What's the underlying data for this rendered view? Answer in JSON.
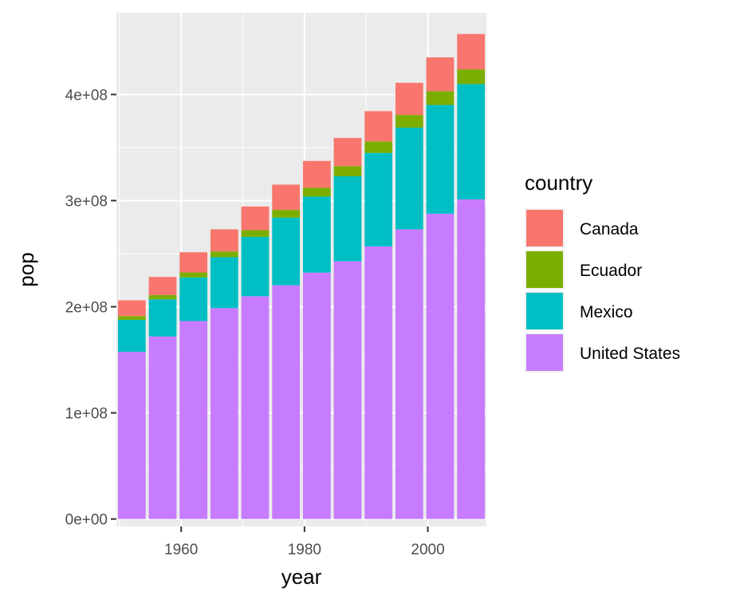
{
  "chart_data": {
    "type": "bar",
    "stacked": true,
    "xlabel": "year",
    "ylabel": "pop",
    "x": [
      1952,
      1957,
      1962,
      1967,
      1972,
      1977,
      1982,
      1987,
      1992,
      1997,
      2002,
      2007
    ],
    "xlim": [
      1949.5,
      2009.5
    ],
    "ylim": [
      -7000000,
      477000000
    ],
    "x_ticks": [
      {
        "value": 1960,
        "label": "1960"
      },
      {
        "value": 1980,
        "label": "1980"
      },
      {
        "value": 2000,
        "label": "2000"
      }
    ],
    "y_ticks": [
      {
        "value": 0,
        "label": "0e+00"
      },
      {
        "value": 100000000,
        "label": "1e+08"
      },
      {
        "value": 200000000,
        "label": "2e+08"
      },
      {
        "value": 300000000,
        "label": "3e+08"
      },
      {
        "value": 400000000,
        "label": "4e+08"
      }
    ],
    "legend": {
      "title": "country",
      "position": "right"
    },
    "grid": true,
    "series": [
      {
        "name": "United States",
        "color": "#C77CFF",
        "values": [
          157553000,
          171984000,
          186538000,
          198712000,
          209896000,
          220239000,
          232187835,
          242803533,
          256894189,
          272911760,
          287675526,
          301139947
        ]
      },
      {
        "name": "Mexico",
        "color": "#00BFC4",
        "values": [
          30144317,
          35015548,
          41121485,
          47995559,
          55984294,
          63759976,
          71640904,
          80122492,
          88111030,
          95895146,
          102479927,
          108700891
        ]
      },
      {
        "name": "Ecuador",
        "color": "#7CAE00",
        "values": [
          3548753,
          4058385,
          4681707,
          5432424,
          6298651,
          7278866,
          8365850,
          9545158,
          10748394,
          11911819,
          12921234,
          13755680
        ]
      },
      {
        "name": "Canada",
        "color": "#F8766D",
        "values": [
          14785584,
          17010154,
          18985849,
          20819767,
          22284500,
          23796400,
          25201900,
          26549700,
          28523502,
          30305843,
          31902268,
          33390141
        ]
      }
    ],
    "legend_order": [
      "Canada",
      "Ecuador",
      "Mexico",
      "United States"
    ]
  }
}
